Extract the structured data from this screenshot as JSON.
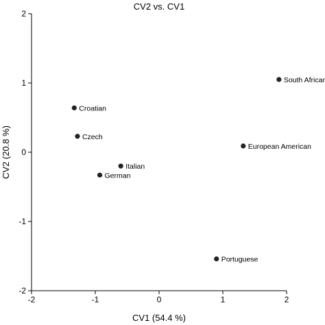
{
  "chart_data": {
    "type": "scatter",
    "title": "CV2 vs. CV1",
    "xlabel": "CV1 (54.4 %)",
    "ylabel": "CV2 (20.8 %)",
    "xlim": [
      -2,
      2
    ],
    "ylim": [
      -2,
      2
    ],
    "xticks": [
      -2,
      -1,
      0,
      1,
      2
    ],
    "yticks": [
      -2,
      -1,
      0,
      1,
      2
    ],
    "grid": false,
    "marker_color": "#222222",
    "points": [
      {
        "label": "South African",
        "x": 1.88,
        "y": 1.05
      },
      {
        "label": "Croatian",
        "x": -1.33,
        "y": 0.64
      },
      {
        "label": "Czech",
        "x": -1.28,
        "y": 0.23
      },
      {
        "label": "European American",
        "x": 1.32,
        "y": 0.09
      },
      {
        "label": "Italian",
        "x": -0.6,
        "y": -0.2
      },
      {
        "label": "German",
        "x": -0.93,
        "y": -0.33
      },
      {
        "label": "Portuguese",
        "x": 0.9,
        "y": -1.54
      }
    ]
  }
}
